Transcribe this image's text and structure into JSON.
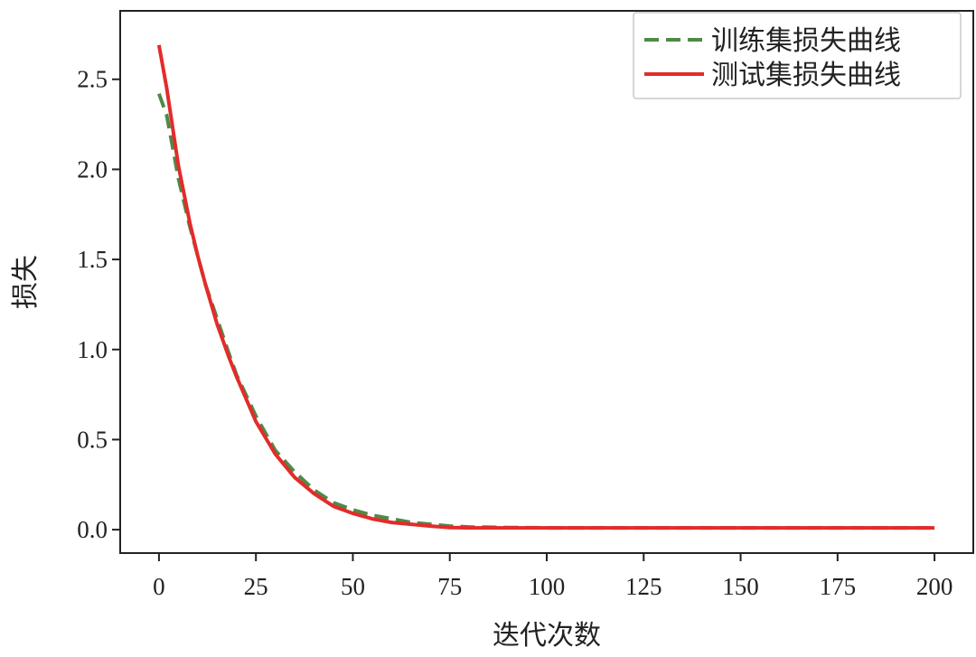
{
  "chart_data": {
    "type": "line",
    "xlabel": "迭代次数",
    "ylabel": "损失",
    "xlim": [
      -10,
      210
    ],
    "ylim": [
      -0.13,
      2.88
    ],
    "xticks": [
      0,
      25,
      50,
      75,
      100,
      125,
      150,
      175,
      200
    ],
    "xtick_labels": [
      "0",
      "25",
      "50",
      "75",
      "100",
      "125",
      "150",
      "175",
      "200"
    ],
    "yticks": [
      0.0,
      0.5,
      1.0,
      1.5,
      2.0,
      2.5
    ],
    "ytick_labels": [
      "0.0",
      "0.5",
      "1.0",
      "1.5",
      "2.0",
      "2.5"
    ],
    "grid": false,
    "legend_position": "top-right",
    "series": [
      {
        "name": "训练集损失曲线",
        "color": "#4e8a47",
        "style": "dashed",
        "x": [
          0,
          2,
          5,
          8,
          10,
          12,
          15,
          18,
          20,
          25,
          30,
          35,
          40,
          45,
          50,
          55,
          60,
          65,
          70,
          75,
          80,
          90,
          100,
          125,
          150,
          175,
          200
        ],
        "y": [
          2.42,
          2.3,
          1.95,
          1.68,
          1.52,
          1.36,
          1.17,
          0.98,
          0.86,
          0.63,
          0.44,
          0.32,
          0.22,
          0.15,
          0.11,
          0.08,
          0.06,
          0.04,
          0.03,
          0.02,
          0.015,
          0.012,
          0.01,
          0.01,
          0.01,
          0.01,
          0.01
        ]
      },
      {
        "name": "测试集损失曲线",
        "color": "#e32b2b",
        "style": "solid",
        "x": [
          0,
          2,
          5,
          8,
          10,
          12,
          15,
          18,
          20,
          25,
          30,
          35,
          40,
          45,
          50,
          55,
          60,
          65,
          70,
          75,
          80,
          90,
          100,
          125,
          150,
          175,
          200
        ],
        "y": [
          2.69,
          2.45,
          2.02,
          1.7,
          1.52,
          1.36,
          1.14,
          0.96,
          0.85,
          0.6,
          0.42,
          0.29,
          0.2,
          0.13,
          0.09,
          0.06,
          0.04,
          0.03,
          0.02,
          0.012,
          0.01,
          0.01,
          0.01,
          0.01,
          0.01,
          0.01,
          0.01
        ]
      }
    ]
  }
}
